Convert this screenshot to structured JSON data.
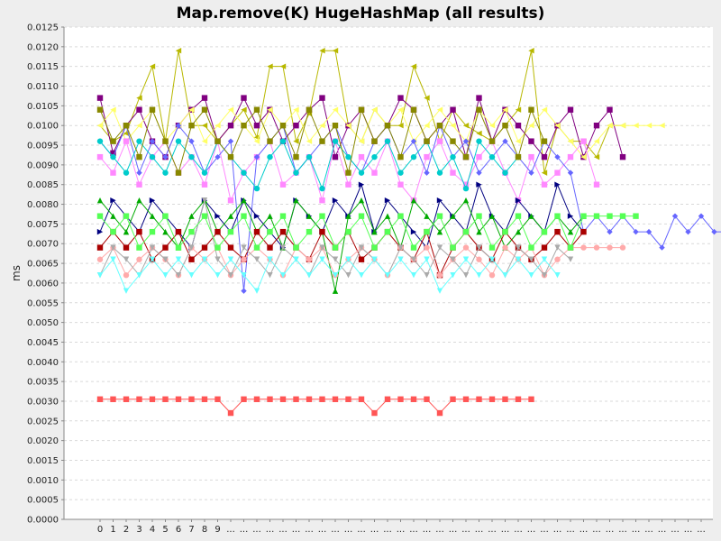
{
  "chart_data": {
    "type": "line",
    "title": "Map.remove(K) HugeHashMap (all results)",
    "xlabel": "",
    "ylabel": "ms",
    "ylim": [
      0,
      0.0125
    ],
    "y_ticks": [
      "0.0000",
      "0.0005",
      "0.0010",
      "0.0015",
      "0.0020",
      "0.0025",
      "0.0030",
      "0.0035",
      "0.0040",
      "0.0045",
      "0.0050",
      "0.0055",
      "0.0060",
      "0.0065",
      "0.0070",
      "0.0075",
      "0.0080",
      "0.0085",
      "0.0090",
      "0.0095",
      "0.0100",
      "0.0105",
      "0.0110",
      "0.0115",
      "0.0120",
      "0.0125"
    ],
    "x_tick_labels": [
      "0",
      "1",
      "2",
      "3",
      "4",
      "5",
      "6",
      "7",
      "8",
      "9",
      "...",
      "...",
      "...",
      "...",
      "...",
      "...",
      "...",
      "...",
      "...",
      "...",
      "...",
      "...",
      "...",
      "...",
      "...",
      "...",
      "...",
      "...",
      "...",
      "...",
      "...",
      "...",
      "...",
      "...",
      "...",
      "...",
      "...",
      "...",
      "...",
      "...",
      "...",
      "...",
      "...",
      "...",
      "...",
      "...",
      "..."
    ],
    "grid": true,
    "legend": "none",
    "series": [
      {
        "color": "#ff5555",
        "marker": "square",
        "values": [
          0.00305,
          0.00305,
          0.00305,
          0.00305,
          0.00305,
          0.00305,
          0.00305,
          0.00305,
          0.00305,
          0.00305,
          0.0027,
          0.00305,
          0.00305,
          0.00305,
          0.00305,
          0.00305,
          0.00305,
          0.00305,
          0.00305,
          0.00305,
          0.00305,
          0.0027,
          0.00305,
          0.00305,
          0.00305,
          0.00305,
          0.0027,
          0.00305,
          0.00305,
          0.00305,
          0.00305,
          0.00305,
          0.00305,
          0.00305
        ]
      },
      {
        "color": "#b8b800",
        "marker": "triangle-left",
        "values": [
          0.01,
          0.0096,
          0.0098,
          0.0107,
          0.0115,
          0.0096,
          0.0119,
          0.01,
          0.01,
          0.0096,
          0.01,
          0.0104,
          0.0097,
          0.0115,
          0.0115,
          0.0096,
          0.0103,
          0.0119,
          0.0119,
          0.01,
          0.0096,
          0.0104,
          0.01,
          0.01,
          0.0115,
          0.0107,
          0.0096,
          0.0104,
          0.01,
          0.0098,
          0.0096,
          0.01,
          0.0104,
          0.0119,
          0.0088,
          0.01,
          0.0096,
          0.0096,
          0.0092,
          0.01,
          0.01
        ]
      },
      {
        "color": "#800080",
        "marker": "square",
        "values": [
          0.0107,
          0.0093,
          0.01,
          0.0104,
          0.0096,
          0.0092,
          0.01,
          0.0104,
          0.0107,
          0.0096,
          0.01,
          0.0107,
          0.01,
          0.0104,
          0.0096,
          0.01,
          0.0104,
          0.0107,
          0.0092,
          0.01,
          0.0104,
          0.0096,
          0.01,
          0.0107,
          0.0104,
          0.0096,
          0.01,
          0.0104,
          0.0092,
          0.0107,
          0.0096,
          0.0104,
          0.01,
          0.0096,
          0.0092,
          0.01,
          0.0104,
          0.0092,
          0.01,
          0.0104,
          0.0092
        ]
      },
      {
        "color": "#ffff66",
        "marker": "triangle-left",
        "values": [
          0.01,
          0.0104,
          0.0096,
          0.01,
          0.0104,
          0.0096,
          0.01,
          0.0104,
          0.0096,
          0.01,
          0.0104,
          0.01,
          0.0096,
          0.0104,
          0.01,
          0.0104,
          0.0096,
          0.01,
          0.0104,
          0.01,
          0.0096,
          0.0104,
          0.01,
          0.0104,
          0.0096,
          0.01,
          0.0104,
          0.01,
          0.0096,
          0.0104,
          0.01,
          0.0104,
          0.0096,
          0.01,
          0.0104,
          0.01,
          0.0096,
          0.0092,
          0.0096,
          0.01,
          0.01,
          0.01,
          0.01,
          0.01
        ]
      },
      {
        "color": "#ff88ff",
        "marker": "square",
        "values": [
          0.0092,
          0.0088,
          0.0096,
          0.0085,
          0.0092,
          0.0096,
          0.0088,
          0.0092,
          0.0085,
          0.0096,
          0.0081,
          0.0088,
          0.0092,
          0.0096,
          0.0085,
          0.0088,
          0.0092,
          0.0081,
          0.0096,
          0.0085,
          0.0092,
          0.0088,
          0.0096,
          0.0085,
          0.0081,
          0.0092,
          0.0096,
          0.0088,
          0.0085,
          0.0092,
          0.0096,
          0.0088,
          0.0081,
          0.0092,
          0.0085,
          0.0088,
          0.0092,
          0.0096,
          0.0085
        ]
      },
      {
        "color": "#6666ff",
        "marker": "diamond",
        "values": [
          0.0096,
          0.0092,
          0.01,
          0.0088,
          0.0096,
          0.0092,
          0.01,
          0.0096,
          0.0088,
          0.0092,
          0.0096,
          0.0058,
          0.0092,
          0.0096,
          0.01,
          0.0088,
          0.0092,
          0.0096,
          0.01,
          0.0092,
          0.0088,
          0.0096,
          0.01,
          0.0092,
          0.0096,
          0.0088,
          0.01,
          0.0092,
          0.0096,
          0.0088,
          0.0092,
          0.0096,
          0.0092,
          0.0088,
          0.0096,
          0.0092,
          0.0088,
          0.0073,
          0.0077,
          0.0073,
          0.0077,
          0.0073,
          0.0073,
          0.0069,
          0.0077,
          0.0073,
          0.0077,
          0.0073,
          0.0073
        ]
      },
      {
        "color": "#000080",
        "marker": "triangle-right",
        "values": [
          0.0073,
          0.0081,
          0.0077,
          0.0073,
          0.0081,
          0.0077,
          0.0073,
          0.0069,
          0.0081,
          0.0077,
          0.0073,
          0.0081,
          0.0077,
          0.0073,
          0.0069,
          0.0081,
          0.0077,
          0.0073,
          0.0081,
          0.0077,
          0.0085,
          0.0073,
          0.0081,
          0.0077,
          0.0073,
          0.0069,
          0.0081,
          0.0077,
          0.0073,
          0.0085,
          0.0077,
          0.0073,
          0.0081,
          0.0077,
          0.0073,
          0.0085,
          0.0077,
          0.0073
        ]
      },
      {
        "color": "#00aa00",
        "marker": "triangle-up",
        "values": [
          0.0081,
          0.0077,
          0.0073,
          0.0081,
          0.0077,
          0.0073,
          0.0069,
          0.0077,
          0.0081,
          0.0073,
          0.0077,
          0.0081,
          0.0073,
          0.0077,
          0.0069,
          0.0081,
          0.0077,
          0.0073,
          0.0058,
          0.0077,
          0.0081,
          0.0073,
          0.0077,
          0.0069,
          0.0081,
          0.0077,
          0.0073,
          0.0077,
          0.0081,
          0.0073,
          0.0077,
          0.0069,
          0.0073,
          0.0077,
          0.0073,
          0.0077,
          0.0073,
          0.0077
        ]
      },
      {
        "color": "#00cccc",
        "marker": "circle",
        "values": [
          0.0096,
          0.0092,
          0.0088,
          0.0096,
          0.0092,
          0.0088,
          0.0096,
          0.0092,
          0.0088,
          0.0096,
          0.0092,
          0.0088,
          0.0084,
          0.0092,
          0.0096,
          0.0088,
          0.0092,
          0.0084,
          0.0096,
          0.0092,
          0.0088,
          0.0092,
          0.0096,
          0.0088,
          0.0092,
          0.0096,
          0.0088,
          0.0092,
          0.0084,
          0.0096,
          0.0092,
          0.0088,
          0.0092
        ]
      },
      {
        "color": "#aa0000",
        "marker": "square",
        "values": [
          0.0069,
          0.0073,
          0.0069,
          0.0073,
          0.0066,
          0.0069,
          0.0073,
          0.0066,
          0.0069,
          0.0073,
          0.0069,
          0.0066,
          0.0073,
          0.0069,
          0.0073,
          0.0069,
          0.0066,
          0.0073,
          0.0069,
          0.0073,
          0.0066,
          0.0069,
          0.0073,
          0.0069,
          0.0066,
          0.0073,
          0.0062,
          0.0069,
          0.0073,
          0.0069,
          0.0066,
          0.0073,
          0.0069,
          0.0066,
          0.0069,
          0.0073,
          0.0069,
          0.0073
        ]
      },
      {
        "color": "#ffaaaa",
        "marker": "circle",
        "values": [
          0.0066,
          0.0069,
          0.0062,
          0.0066,
          0.0069,
          0.0066,
          0.0062,
          0.0069,
          0.0066,
          0.0069,
          0.0062,
          0.0066,
          0.0069,
          0.0066,
          0.0062,
          0.0069,
          0.0066,
          0.0069,
          0.0062,
          0.0066,
          0.0069,
          0.0066,
          0.0062,
          0.0069,
          0.0066,
          0.0069,
          0.0062,
          0.0066,
          0.0069,
          0.0066,
          0.0062,
          0.0069,
          0.0066,
          0.0069,
          0.0062,
          0.0066,
          0.0069,
          0.0069,
          0.0069,
          0.0069,
          0.0069
        ]
      },
      {
        "color": "#888800",
        "marker": "square",
        "values": [
          0.0104,
          0.0096,
          0.01,
          0.0092,
          0.0104,
          0.0096,
          0.0088,
          0.01,
          0.0104,
          0.0096,
          0.0092,
          0.01,
          0.0104,
          0.0096,
          0.01,
          0.0092,
          0.0104,
          0.0096,
          0.01,
          0.0088,
          0.0104,
          0.0096,
          0.01,
          0.0092,
          0.0104,
          0.0096,
          0.01,
          0.0096,
          0.0092,
          0.0104,
          0.0096,
          0.01,
          0.0092,
          0.0104,
          0.0096
        ]
      },
      {
        "color": "#aaaaaa",
        "marker": "triangle-down",
        "values": [
          0.0062,
          0.0069,
          0.0066,
          0.0062,
          0.0069,
          0.0066,
          0.0062,
          0.0069,
          0.0081,
          0.0066,
          0.0062,
          0.0069,
          0.0066,
          0.0062,
          0.0069,
          0.0066,
          0.0062,
          0.0069,
          0.0066,
          0.0062,
          0.0069,
          0.0066,
          0.0062,
          0.0069,
          0.0066,
          0.0062,
          0.0069,
          0.0066,
          0.0062,
          0.0069,
          0.0066,
          0.0062,
          0.0069,
          0.0066,
          0.0062,
          0.0069,
          0.0066
        ]
      },
      {
        "color": "#66ffff",
        "marker": "triangle-down",
        "values": [
          0.0062,
          0.0066,
          0.0058,
          0.0062,
          0.0066,
          0.0062,
          0.0066,
          0.0062,
          0.0066,
          0.0062,
          0.0066,
          0.0062,
          0.0058,
          0.0066,
          0.0062,
          0.0066,
          0.0062,
          0.0066,
          0.0062,
          0.0066,
          0.0062,
          0.0066,
          0.0062,
          0.0066,
          0.0062,
          0.0066,
          0.0058,
          0.0062,
          0.0066,
          0.0062,
          0.0066,
          0.0062,
          0.0066,
          0.0062,
          0.0066,
          0.0062
        ]
      },
      {
        "color": "#55ff55",
        "marker": "square",
        "values": [
          0.0077,
          0.0073,
          0.0077,
          0.0069,
          0.0073,
          0.0077,
          0.0069,
          0.0073,
          0.0077,
          0.0069,
          0.0073,
          0.0077,
          0.0069,
          0.0073,
          0.0077,
          0.0069,
          0.0073,
          0.0077,
          0.0069,
          0.0073,
          0.0077,
          0.0069,
          0.0073,
          0.0077,
          0.0069,
          0.0073,
          0.0077,
          0.0069,
          0.0073,
          0.0077,
          0.0069,
          0.0073,
          0.0077,
          0.0069,
          0.0073,
          0.0077,
          0.0069,
          0.0077,
          0.0077,
          0.0077,
          0.0077,
          0.0077
        ]
      }
    ]
  }
}
